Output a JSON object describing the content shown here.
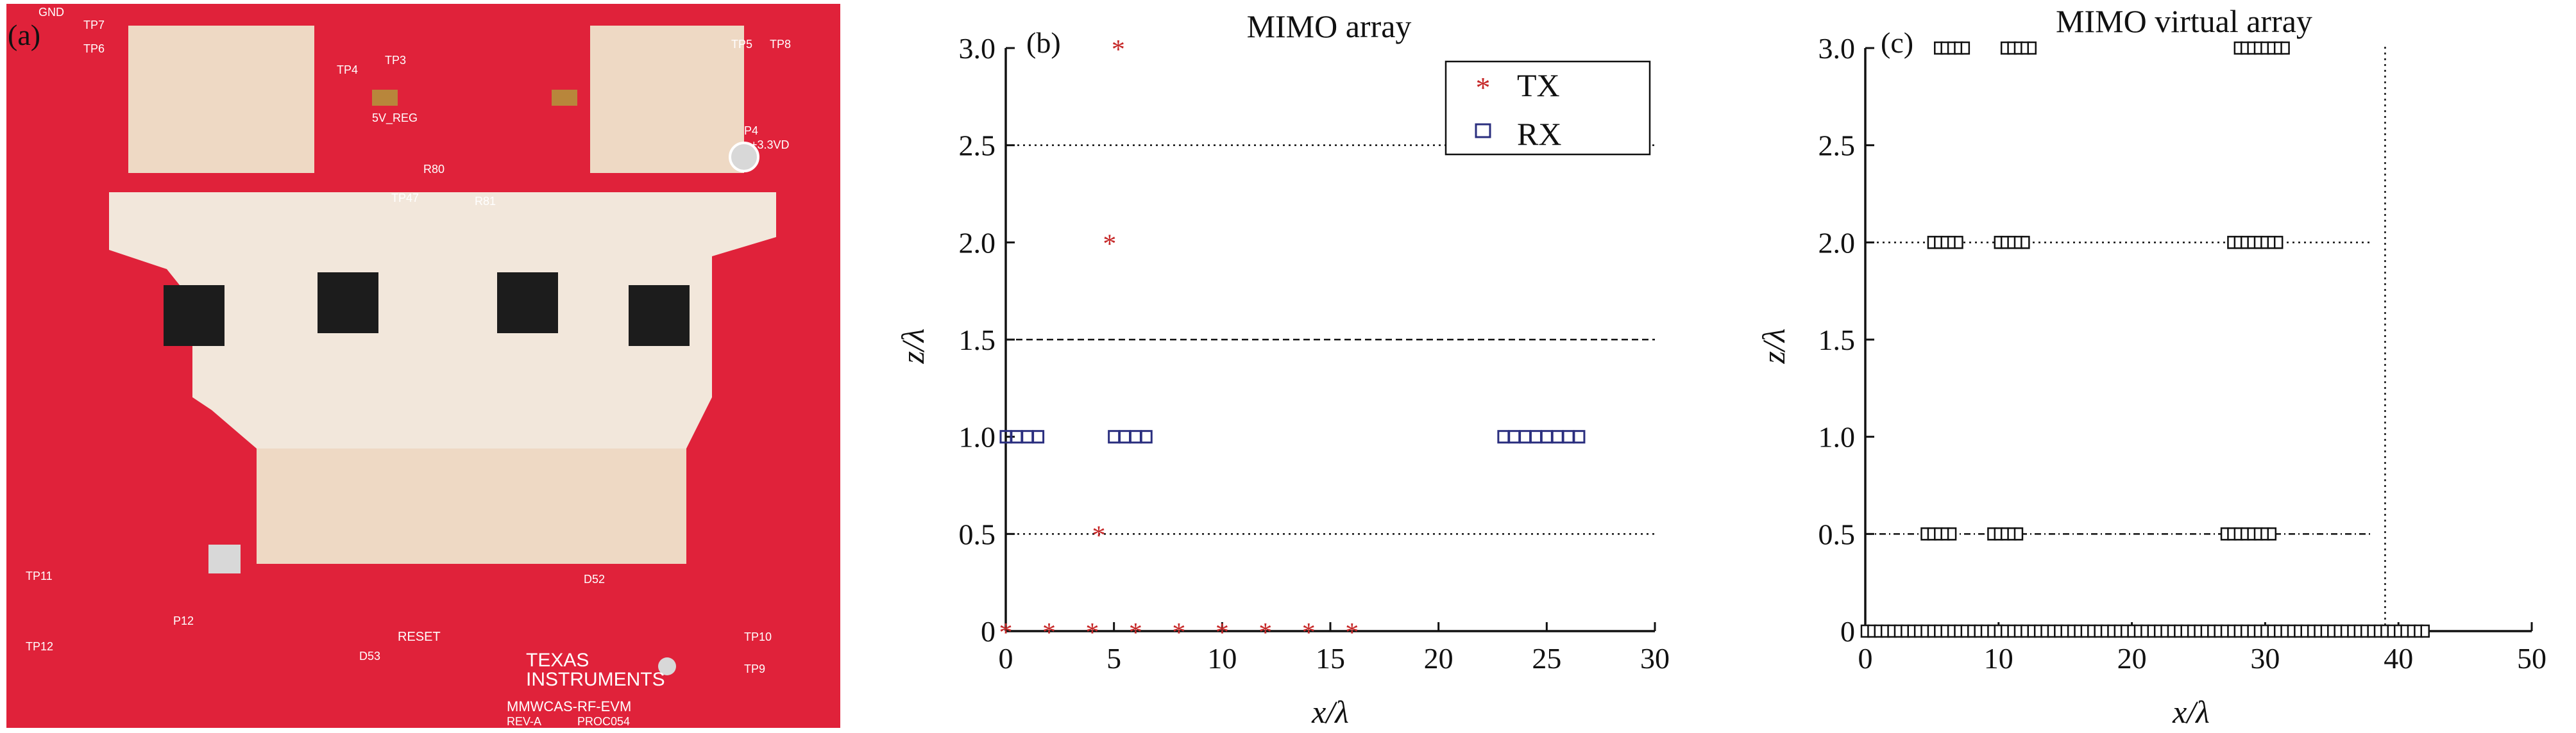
{
  "figure": {
    "panels": [
      {
        "label": "(a)"
      },
      {
        "label": "(b)"
      },
      {
        "label": "(c)"
      }
    ],
    "board": {
      "silkscreen": [
        "TEXAS",
        "INSTRUMENTS",
        "MMWCAS-RF-EVM",
        "REV-A",
        "PROC054",
        "RESET",
        "GND",
        "TP7",
        "TP6",
        "TP3",
        "TP4",
        "TP5",
        "TP8",
        "TP11",
        "TP12",
        "TP10",
        "TP9",
        "5V_REG",
        "+3.3VD",
        "P4",
        "P12",
        "D53",
        "D52",
        "R80",
        "R81",
        "TP47"
      ]
    }
  },
  "chart_data": [
    {
      "type": "scatter",
      "title": "MIMO array",
      "xlabel": "x/λ",
      "ylabel": "z/λ",
      "xlim": [
        0,
        30
      ],
      "ylim": [
        0,
        3.0
      ],
      "xticks": [
        "0",
        "5",
        "10",
        "15",
        "20",
        "25",
        "30"
      ],
      "yticks": [
        "0",
        "0.5",
        "1.0",
        "1.5",
        "2.0",
        "2.5",
        "3.0"
      ],
      "grid": "horizontal lines at 0.5, 1.5, 2.5",
      "legend_position": "top-right",
      "series": [
        {
          "name": "TX",
          "marker": "asterisk",
          "color": "#c62828",
          "x": [
            0,
            2,
            4,
            6,
            8,
            10,
            12,
            14,
            16,
            4.3,
            4.8,
            5.2
          ],
          "y": [
            0,
            0,
            0,
            0,
            0,
            0,
            0,
            0,
            0,
            0.5,
            2.0,
            3.0
          ]
        },
        {
          "name": "RX",
          "marker": "square",
          "color": "#2b2f7f",
          "x": [
            0,
            0.5,
            1.0,
            1.5,
            5.0,
            5.5,
            6.0,
            6.5,
            23.0,
            23.5,
            24.0,
            24.5,
            25.0,
            25.5,
            26.0,
            26.5
          ],
          "y": [
            1,
            1,
            1,
            1,
            1,
            1,
            1,
            1,
            1,
            1,
            1,
            1,
            1,
            1,
            1,
            1
          ]
        }
      ]
    },
    {
      "type": "scatter",
      "title": "MIMO virtual array",
      "xlabel": "x/λ",
      "ylabel": "z/λ",
      "xlim": [
        0,
        50
      ],
      "ylim": [
        0,
        3.0
      ],
      "xticks": [
        "0",
        "10",
        "20",
        "30",
        "40",
        "50"
      ],
      "yticks": [
        "0",
        "0.5",
        "1.0",
        "1.5",
        "2.0",
        "2.5",
        "3.0"
      ],
      "grid": "horizontal lines at 0.5, 2.0; vertical line at 39",
      "series": [
        {
          "marker": "square",
          "color": "#111111",
          "rows": [
            {
              "z": 0,
              "x_start": 0,
              "x_end": 42,
              "step": 0.5
            },
            {
              "z": 0.5,
              "groups": [
                [
                  4.5,
                  6.5
                ],
                [
                  9.5,
                  11.5
                ],
                [
                  27.0,
                  30.5
                ]
              ],
              "step": 0.5
            },
            {
              "z": 2.0,
              "groups": [
                [
                  5.0,
                  7.0
                ],
                [
                  10.0,
                  12.0
                ],
                [
                  27.5,
                  31.0
                ]
              ],
              "step": 0.5
            },
            {
              "z": 3.0,
              "groups": [
                [
                  5.5,
                  7.5
                ],
                [
                  10.5,
                  12.5
                ],
                [
                  28.0,
                  31.5
                ]
              ],
              "step": 0.5
            }
          ]
        }
      ]
    }
  ]
}
